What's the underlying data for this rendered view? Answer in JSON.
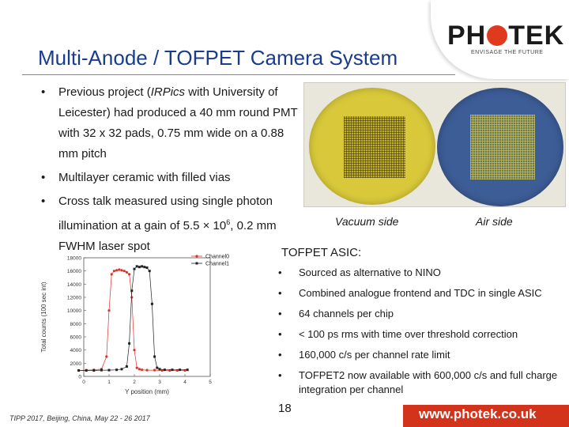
{
  "title": "Multi-Anode / TOFPET Camera System",
  "logo": {
    "name": "PHOTEK",
    "tagline": "ENVISAGE THE FUTURE"
  },
  "bullets": [
    "Previous project (IRPics with University of Leicester) had produced a 40 mm round PMT with 32 x 32 pads, 0.75 mm wide on a 0.88 mm pitch",
    "Multilayer ceramic with filled vias",
    "Cross talk measured using single photon illumination at a gain of 5.5 × 10",
    "FWHM laser spot"
  ],
  "bullet_parts": {
    "b1_a": "Previous project (",
    "b1_em": "IRPics",
    "b1_b": " with University of Leicester) had produced a 40 mm round PMT with 32 x 32 pads, 0.75 mm wide on a 0.88 mm pitch",
    "b3_a": "Cross talk measured using single photon illumination at a gain of 5.5 × 10",
    "b3_sup": "6",
    "b3_b": ", 0.2 mm FWHM laser spot"
  },
  "photo": {
    "left_label": "Vacuum side",
    "right_label": "Air side"
  },
  "asic": {
    "title": "TOFPET ASIC:",
    "items": [
      "Sourced as alternative to NINO",
      "Combined analogue frontend and TDC in single ASIC",
      "64 channels per chip",
      "< 100 ps rms with time over threshold correction",
      "160,000 c/s per channel rate limit",
      "TOFPET2 now available with 600,000 c/s and full charge integration per channel"
    ]
  },
  "page_number": "18",
  "footer": "TIPP 2017, Beijing, China, May 22 - 26 2017",
  "website": "www.photek.co.uk",
  "colors": {
    "title": "#1a3c8f",
    "accent": "#d4331b",
    "channel0": "#e0302a",
    "channel1": "#222222"
  },
  "chart_data": {
    "type": "line",
    "xlabel": "Y position (mm)",
    "ylabel": "Total counts (100 sec int)",
    "xlim": [
      0,
      5
    ],
    "ylim": [
      0,
      18000
    ],
    "x_ticks": [
      "0",
      "1",
      "2",
      "3",
      "4",
      "5"
    ],
    "y_ticks": [
      "0",
      "2000",
      "4000",
      "6000",
      "8000",
      "10000",
      "12000",
      "14000",
      "16000",
      "18000"
    ],
    "legend_position": "top-right",
    "series": [
      {
        "name": "Channel0",
        "x": [
          -0.2,
          0.1,
          0.4,
          0.7,
          0.9,
          1.0,
          1.1,
          1.2,
          1.3,
          1.4,
          1.5,
          1.6,
          1.7,
          1.8,
          1.9,
          2.0,
          2.1,
          2.2,
          2.3,
          2.5,
          2.8,
          3.1,
          3.4,
          3.7,
          4.0
        ],
        "values": [
          900,
          950,
          1000,
          1100,
          3000,
          10000,
          15500,
          16000,
          16100,
          16200,
          16100,
          16000,
          15800,
          15500,
          12000,
          4000,
          1300,
          1100,
          1000,
          950,
          950,
          900,
          900,
          900,
          900
        ]
      },
      {
        "name": "Channel1",
        "x": [
          -0.2,
          0.1,
          0.4,
          0.7,
          1.0,
          1.3,
          1.5,
          1.7,
          1.8,
          1.9,
          2.0,
          2.1,
          2.2,
          2.3,
          2.4,
          2.5,
          2.6,
          2.7,
          2.8,
          2.9,
          3.0,
          3.2,
          3.5,
          3.8,
          4.1
        ],
        "values": [
          900,
          900,
          900,
          950,
          950,
          1000,
          1100,
          1500,
          5000,
          13000,
          16300,
          16700,
          16600,
          16700,
          16600,
          16500,
          16000,
          11000,
          3000,
          1300,
          1100,
          1000,
          1000,
          1000,
          1000
        ]
      }
    ]
  }
}
